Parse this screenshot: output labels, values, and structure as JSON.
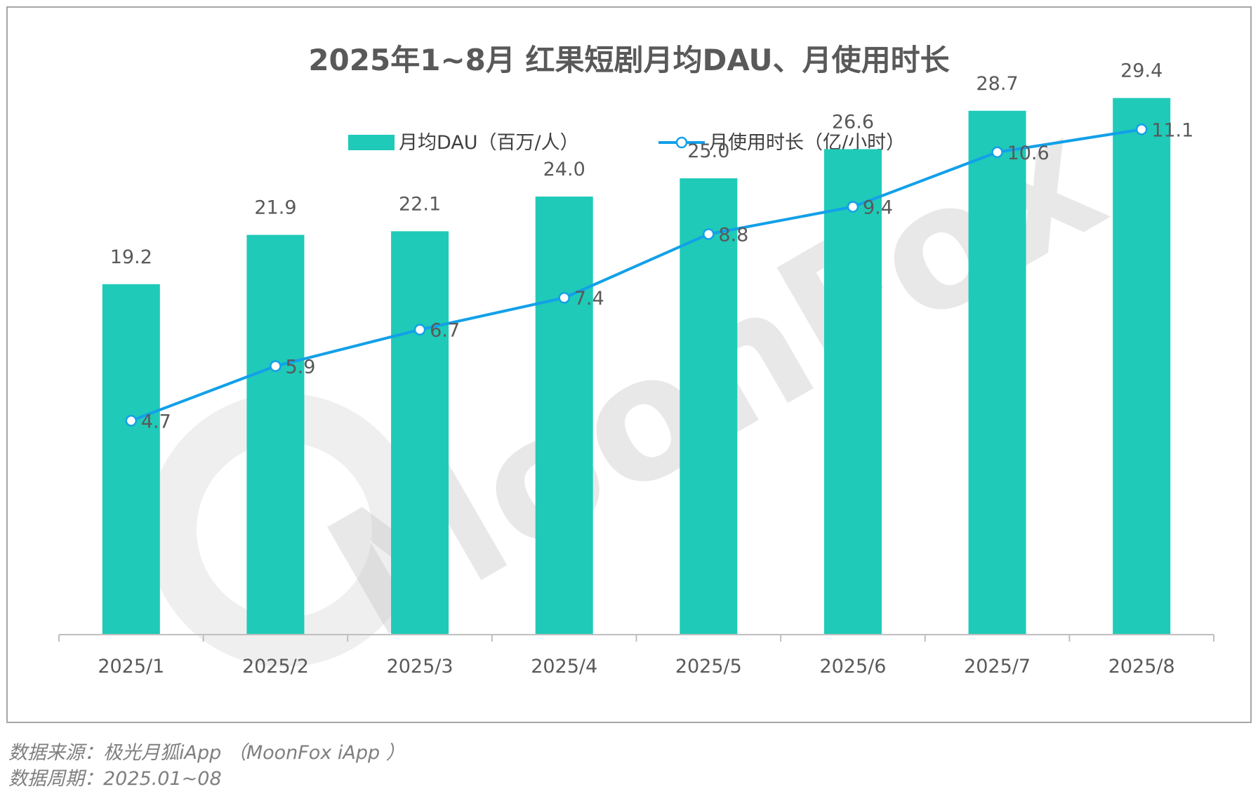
{
  "chart_data": {
    "type": "bar+line",
    "title": "2025年1~8月 红果短剧月均DAU、月使用时长",
    "categories": [
      "2025/1",
      "2025/2",
      "2025/3",
      "2025/4",
      "2025/5",
      "2025/6",
      "2025/7",
      "2025/8"
    ],
    "series": [
      {
        "name": "月均DAU（百万/人）",
        "type": "bar",
        "color": "#1FCAB8",
        "values": [
          19.2,
          21.9,
          22.1,
          24.0,
          25.0,
          26.6,
          28.7,
          29.4
        ],
        "labels": [
          "19.2",
          "21.9",
          "22.1",
          "24.0",
          "25.0",
          "26.6",
          "28.7",
          "29.4"
        ]
      },
      {
        "name": "月使用时长（亿/小时）",
        "type": "line",
        "color": "#12A0E8",
        "values": [
          4.7,
          5.9,
          6.7,
          7.4,
          8.8,
          9.4,
          10.6,
          11.1
        ],
        "labels": [
          "4.7",
          "5.9",
          "6.7",
          "7.4",
          "8.8",
          "9.4",
          "10.6",
          "11.1"
        ]
      }
    ],
    "bar_axis_range": [
      0,
      30
    ],
    "line_axis_range": [
      0,
      12
    ],
    "legend_position": "top-center",
    "grid": false
  },
  "watermark": {
    "text": "MoonFox",
    "icon": "moonfox-logo-icon"
  },
  "footer": {
    "source": "数据来源：极光月狐iApp （MoonFox iApp ）",
    "period": "数据周期：2025.01~08"
  }
}
